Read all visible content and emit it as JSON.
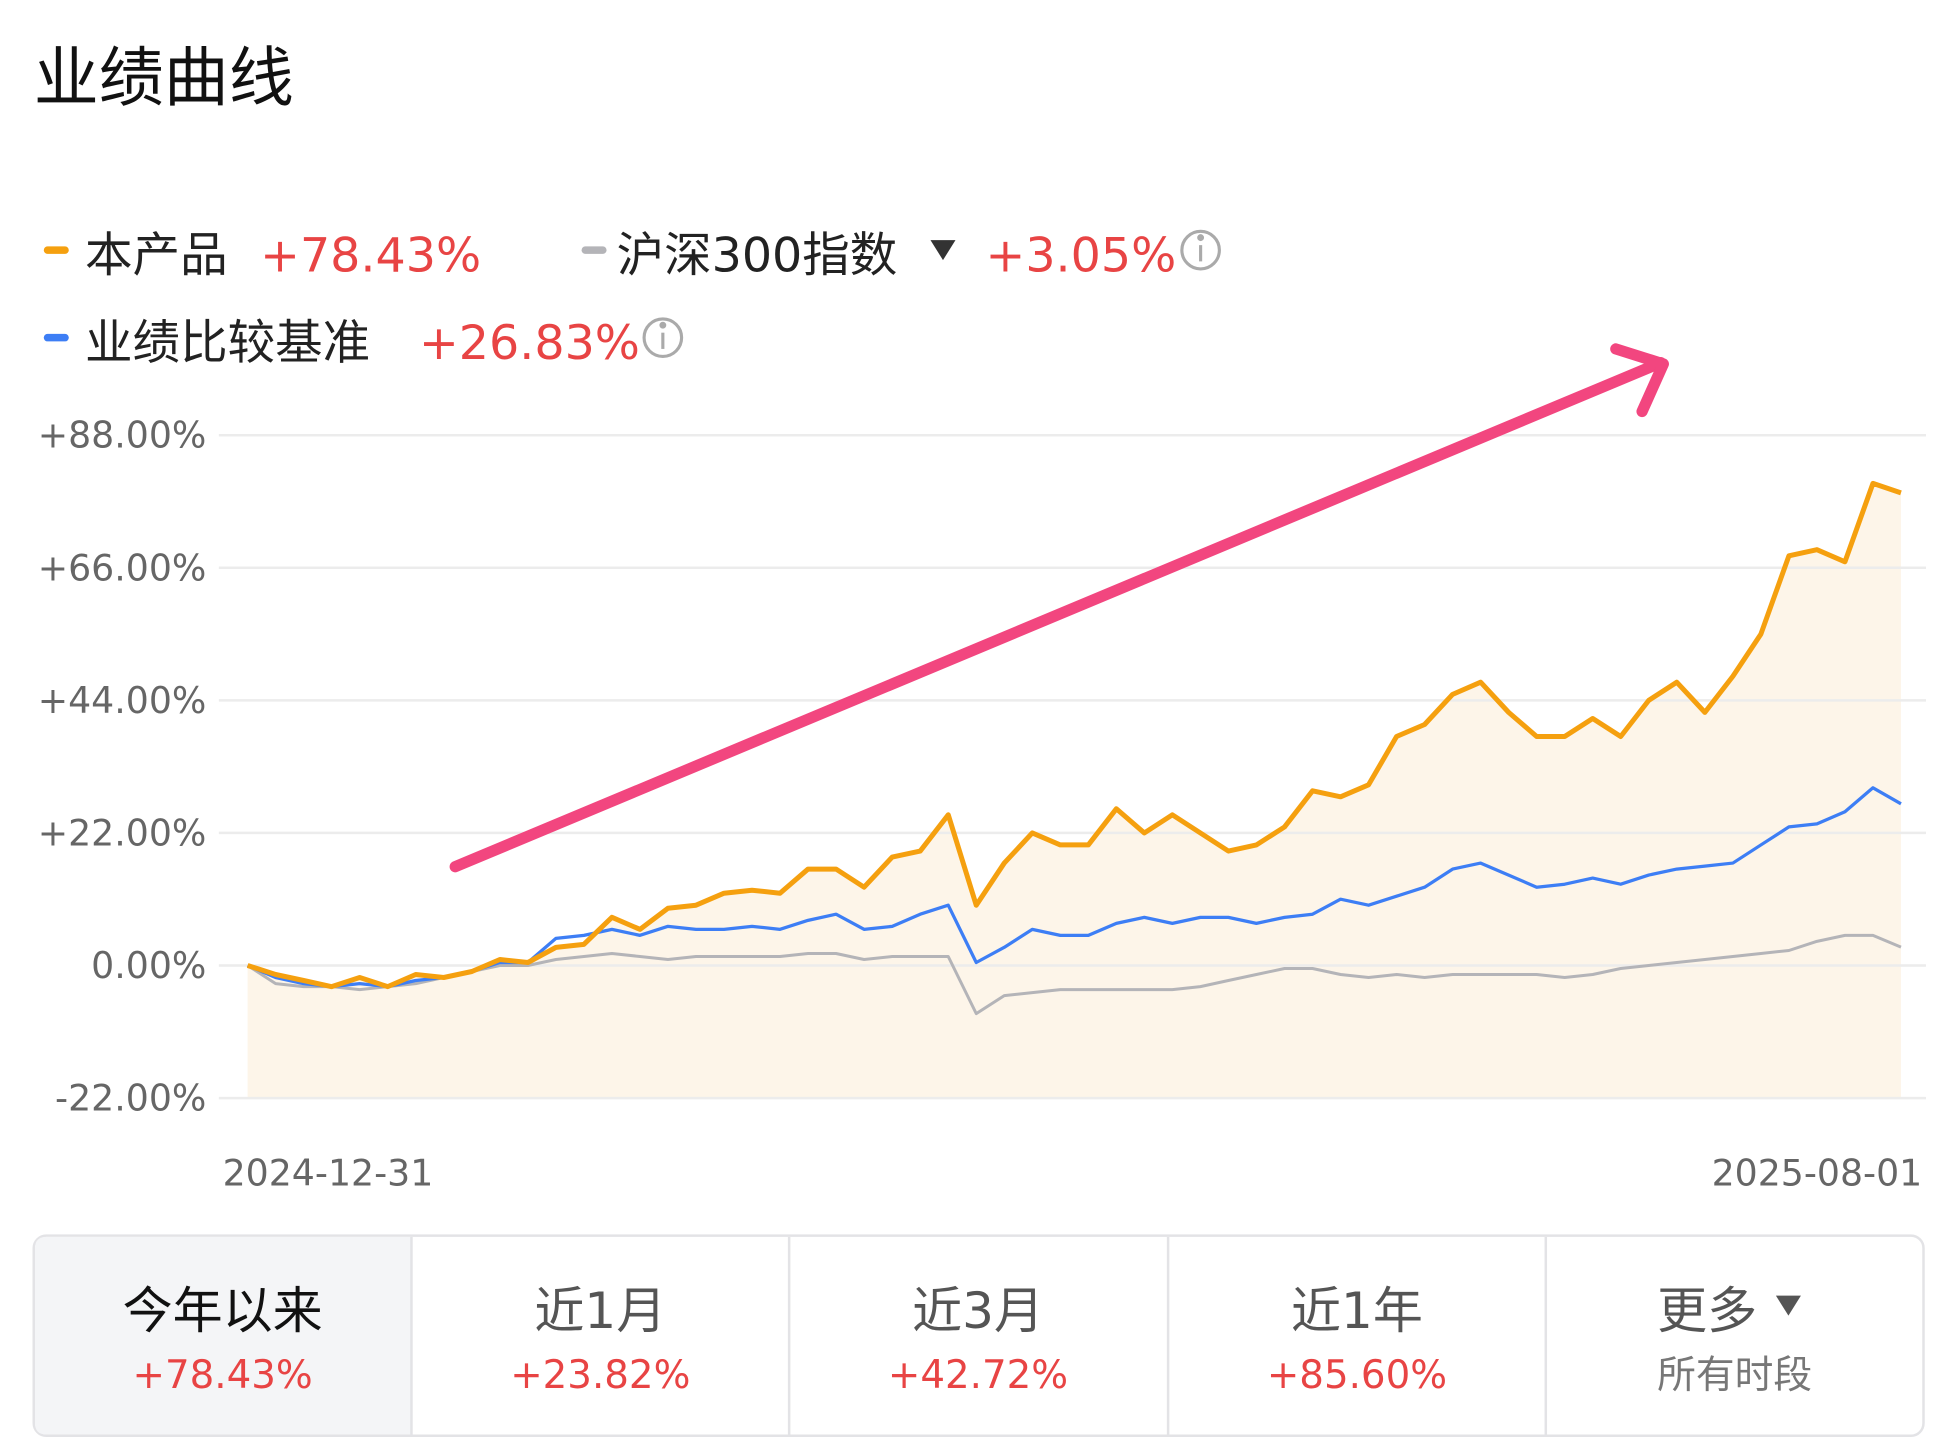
{
  "title": "业绩曲线",
  "chart_data": {
    "type": "line",
    "categories": [
      "2024-12-31",
      null,
      null,
      null,
      null,
      null,
      null,
      null,
      null,
      null,
      null,
      null,
      null,
      null,
      null,
      null,
      null,
      null,
      null,
      null,
      null,
      null,
      null,
      null,
      null,
      null,
      null,
      null,
      null,
      null,
      null,
      null,
      null,
      null,
      null,
      null,
      null,
      null,
      null,
      null,
      null,
      null,
      null,
      null,
      null,
      null,
      null,
      null,
      null,
      null,
      null,
      null,
      null,
      null,
      null,
      null,
      null,
      null,
      null,
      "2025-08-01"
    ],
    "series": [
      {
        "name": "本产品",
        "change": "+78.43%",
        "color": "#f5a00f",
        "values": [
          0,
          -1.5,
          -2.5,
          -3.5,
          -2,
          -3.5,
          -1.5,
          -2,
          -1,
          1,
          0.5,
          3,
          3.5,
          8,
          6,
          9.5,
          10,
          12,
          12.5,
          12,
          16,
          16,
          13,
          18,
          19,
          25,
          10,
          17,
          22,
          20,
          20,
          26,
          22,
          25,
          22,
          19,
          20,
          23,
          29,
          28,
          30,
          38,
          40,
          45,
          47,
          42,
          38,
          38,
          41,
          38,
          44,
          47,
          42,
          48,
          55,
          68,
          69,
          67,
          80,
          78.43
        ]
      },
      {
        "name": "沪深300指数",
        "change": "+3.05%",
        "color": "#b4b4b8",
        "values": [
          0,
          -3,
          -3.5,
          -3.5,
          -4,
          -3.5,
          -3,
          -2,
          -1,
          0,
          0,
          1,
          1.5,
          2,
          1.5,
          1,
          1.5,
          1.5,
          1.5,
          1.5,
          2,
          2,
          1,
          1.5,
          1.5,
          1.5,
          -8,
          -5,
          -4.5,
          -4,
          -4,
          -4,
          -4,
          -4,
          -3.5,
          -2.5,
          -1.5,
          -0.5,
          -0.5,
          -1.5,
          -2,
          -1.5,
          -2,
          -1.5,
          -1.5,
          -1.5,
          -1.5,
          -2,
          -1.5,
          -0.5,
          0,
          0.5,
          1,
          1.5,
          2,
          2.5,
          4,
          5,
          5,
          3.05
        ]
      },
      {
        "name": "业绩比较基准",
        "change": "+26.83%",
        "color": "#3d7ef5",
        "values": [
          0,
          -2,
          -3,
          -3.5,
          -3,
          -3.5,
          -2.5,
          -2,
          -1,
          0.5,
          0.5,
          4.5,
          5,
          6,
          5,
          6.5,
          6,
          6,
          6.5,
          6,
          7.5,
          8.5,
          6,
          6.5,
          8.5,
          10,
          0.5,
          3,
          6,
          5,
          5,
          7,
          8,
          7,
          8,
          8,
          7,
          8,
          8.5,
          11,
          10,
          11.5,
          13,
          16,
          17,
          15,
          13,
          13.5,
          14.5,
          13.5,
          15,
          16,
          16.5,
          17,
          20,
          23,
          23.5,
          25.5,
          29.5,
          26.83
        ]
      }
    ],
    "area_color": "#fdf5e9",
    "ylim": [
      -22,
      88
    ],
    "yticks": [
      {
        "value": -22,
        "label": "-22.00%"
      },
      {
        "value": 0,
        "label": "0.00%"
      },
      {
        "value": 22,
        "label": "+22.00%"
      },
      {
        "value": 44,
        "label": "+44.00%"
      },
      {
        "value": 66,
        "label": "+66.00%"
      },
      {
        "value": 88,
        "label": "+88.00%"
      }
    ],
    "grid": true
  },
  "tabs": [
    {
      "label": "今年以来",
      "value": "+78.43%"
    },
    {
      "label": "近1月",
      "value": "+23.82%"
    },
    {
      "label": "近3月",
      "value": "+42.72%"
    },
    {
      "label": "近1年",
      "value": "+85.60%"
    },
    {
      "label": "更多",
      "value": "所有时段"
    }
  ]
}
